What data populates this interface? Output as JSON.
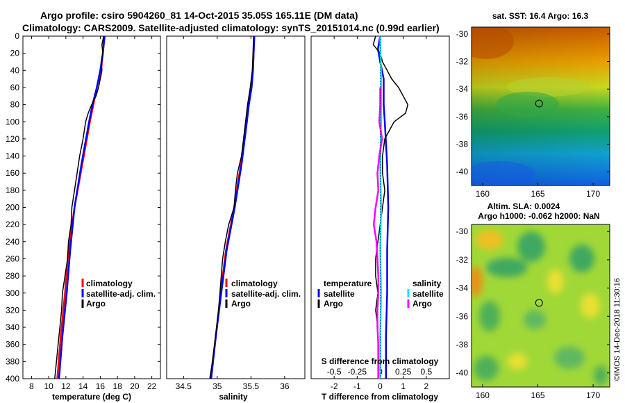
{
  "title_line1": "Argo profile: csiro 5904260_81 14-Oct-2015 35.05S 165.11E (DM data)",
  "title_line2": "Climatology: CARS2009. Satellite-adjusted climatology: synTS_20151014.nc (0.99d earlier)",
  "depth_ticks": [
    "0",
    "20",
    "40",
    "60",
    "80",
    "100",
    "120",
    "140",
    "160",
    "180",
    "200",
    "220",
    "240",
    "260",
    "280",
    "300",
    "320",
    "340",
    "360",
    "380",
    "400"
  ],
  "chart_data": [
    {
      "type": "line",
      "name": "temperature",
      "xlabel": "temperature (deg C)",
      "ylabel": "depth (m)",
      "xlim": [
        7,
        23
      ],
      "ylim": [
        400,
        0
      ],
      "xticks": [
        "8",
        "10",
        "12",
        "14",
        "16",
        "18",
        "20",
        "22"
      ],
      "legend": [
        "climatology",
        "satellite-adj. clim.",
        "Argo"
      ],
      "legend_colors": [
        "#ff0000",
        "#0000ff",
        "#000000"
      ],
      "series": [
        {
          "name": "climatology",
          "color": "#ff0000",
          "depth": [
            0,
            20,
            40,
            60,
            80,
            100,
            150,
            200,
            250,
            300,
            350,
            400
          ],
          "values": [
            16.5,
            16.3,
            16.1,
            15.6,
            15.2,
            14.8,
            13.9,
            13.0,
            12.3,
            11.9,
            11.4,
            11.0
          ]
        },
        {
          "name": "satellite-adj. clim.",
          "color": "#0000ff",
          "depth": [
            0,
            20,
            40,
            60,
            80,
            100,
            150,
            200,
            250,
            300,
            350,
            400
          ],
          "values": [
            16.5,
            16.3,
            16.0,
            15.6,
            15.1,
            14.7,
            13.8,
            13.0,
            12.5,
            12.1,
            11.6,
            11.2
          ]
        },
        {
          "name": "Argo",
          "color": "#000000",
          "depth": [
            0,
            10,
            20,
            30,
            40,
            50,
            60,
            70,
            80,
            90,
            100,
            120,
            140,
            160,
            180,
            200,
            220,
            240,
            260,
            280,
            300,
            320,
            340,
            360,
            380,
            400
          ],
          "values": [
            16.4,
            16.2,
            16.3,
            16.1,
            16.2,
            16.0,
            15.8,
            15.5,
            15.0,
            14.6,
            14.3,
            14.0,
            13.6,
            13.3,
            13.0,
            12.7,
            12.6,
            12.3,
            12.2,
            11.9,
            11.6,
            11.5,
            11.3,
            11.1,
            10.9,
            10.7
          ]
        }
      ]
    },
    {
      "type": "line",
      "name": "salinity",
      "xlabel": "salinity",
      "ylabel": "depth (m)",
      "xlim": [
        34.25,
        36.3
      ],
      "ylim": [
        400,
        0
      ],
      "xticks": [
        "34.5",
        "35",
        "35.5",
        "36"
      ],
      "legend": [
        "climatology",
        "satellite-adj. clim.",
        "Argo"
      ],
      "legend_colors": [
        "#ff0000",
        "#0000ff",
        "#000000"
      ],
      "series": [
        {
          "name": "climatology",
          "color": "#ff0000",
          "depth": [
            0,
            20,
            40,
            60,
            80,
            100,
            150,
            200,
            250,
            300,
            350,
            400
          ],
          "values": [
            35.55,
            35.54,
            35.53,
            35.5,
            35.46,
            35.43,
            35.35,
            35.25,
            35.13,
            35.05,
            34.98,
            34.9
          ]
        },
        {
          "name": "satellite-adj. clim.",
          "color": "#0000ff",
          "depth": [
            0,
            20,
            40,
            60,
            80,
            100,
            150,
            200,
            250,
            300,
            350,
            400
          ],
          "values": [
            35.55,
            35.54,
            35.53,
            35.51,
            35.47,
            35.44,
            35.36,
            35.26,
            35.14,
            35.06,
            34.98,
            34.91
          ]
        },
        {
          "name": "Argo",
          "color": "#000000",
          "depth": [
            0,
            20,
            40,
            60,
            80,
            100,
            120,
            140,
            160,
            180,
            200,
            220,
            240,
            260,
            280,
            300,
            320,
            340,
            360,
            380,
            400
          ],
          "values": [
            35.54,
            35.53,
            35.52,
            35.49,
            35.45,
            35.42,
            35.39,
            35.36,
            35.3,
            35.27,
            35.25,
            35.17,
            35.12,
            35.08,
            35.06,
            35.04,
            35.02,
            34.99,
            34.96,
            34.93,
            34.89
          ]
        }
      ]
    },
    {
      "type": "line",
      "name": "difference",
      "xlabel": "T difference from climatology",
      "ylabel": "depth (m)",
      "xlim": [
        -3,
        3
      ],
      "ylim": [
        400,
        0
      ],
      "xticks": [
        "-2",
        "-1",
        "0",
        "1",
        "2"
      ],
      "top_axis_label": "S difference from climatology",
      "top_xlim": [
        -0.75,
        0.75
      ],
      "top_xticks": [
        "-0.5",
        "-0.25",
        "0",
        "0.25",
        "0.5"
      ],
      "legend_temperature_title": "temperature",
      "legend_temperature": [
        "satellite",
        "Argo"
      ],
      "legend_temperature_colors": [
        "#0000ff",
        "#000000"
      ],
      "legend_salinity_title": "salinity",
      "legend_salinity": [
        "satellite",
        "Argo"
      ],
      "legend_salinity_colors": [
        "#00e5ff",
        "#ff00ff"
      ],
      "series": [
        {
          "name": "T satellite",
          "axis": "T",
          "color": "#0000ff",
          "depth": [
            0,
            15,
            30,
            50,
            80,
            100,
            150,
            200,
            250,
            300,
            350,
            400
          ],
          "values": [
            0.0,
            -0.1,
            0.0,
            0.15,
            0.15,
            0.2,
            0.3,
            0.35,
            0.3,
            0.3,
            0.25,
            0.25
          ]
        },
        {
          "name": "T Argo",
          "axis": "T",
          "color": "#000000",
          "depth": [
            0,
            10,
            20,
            30,
            40,
            50,
            60,
            70,
            80,
            90,
            100,
            110,
            120,
            140,
            160,
            180,
            200,
            220,
            240,
            260,
            280,
            300,
            320,
            340,
            360,
            380,
            400
          ],
          "values": [
            -0.2,
            -0.3,
            0.0,
            0.1,
            0.3,
            0.5,
            0.8,
            1.0,
            1.2,
            1.1,
            0.6,
            0.4,
            0.2,
            0.1,
            0.1,
            0.2,
            0.1,
            0.0,
            -0.1,
            -0.2,
            -0.2,
            -0.1,
            -0.2,
            -0.1,
            -0.1,
            -0.1,
            -0.1
          ]
        },
        {
          "name": "S satellite",
          "axis": "S",
          "color": "#00e5ff",
          "depth": [
            0,
            50,
            100,
            150,
            200,
            250,
            300,
            350,
            400
          ],
          "values": [
            0.0,
            0.01,
            0.01,
            0.0,
            0.01,
            0.0,
            0.01,
            0.0,
            0.0
          ]
        },
        {
          "name": "S Argo",
          "axis": "S",
          "color": "#ff00ff",
          "depth": [
            60,
            80,
            100,
            120,
            140,
            160,
            180,
            200,
            220,
            240,
            260,
            280,
            300,
            320,
            340,
            360,
            380,
            400
          ],
          "values": [
            0.0,
            0.0,
            -0.01,
            0.02,
            -0.01,
            -0.03,
            -0.02,
            -0.05,
            -0.07,
            -0.04,
            -0.03,
            -0.02,
            -0.02,
            -0.03,
            -0.03,
            -0.02,
            -0.02,
            -0.02
          ]
        }
      ]
    },
    {
      "type": "heatmap",
      "name": "sst-map",
      "title": "sat. SST: 16.4 Argo: 16.3",
      "xlim": [
        159,
        171.5
      ],
      "ylim": [
        -41,
        -29.5
      ],
      "xticks": [
        "160",
        "165",
        "170"
      ],
      "yticks": [
        "-30",
        "-32",
        "-34",
        "-36",
        "-38",
        "-40"
      ],
      "argo_position": {
        "lon": 165.11,
        "lat": -35.05
      }
    },
    {
      "type": "heatmap",
      "name": "sla-map",
      "title_line1": "Altim. SLA: 0.0024",
      "title_line2": "Argo h1000: -0.062 h2000: NaN",
      "xlim": [
        159,
        171.5
      ],
      "ylim": [
        -41,
        -29.5
      ],
      "xticks": [
        "160",
        "165",
        "170"
      ],
      "yticks": [
        "-30",
        "-32",
        "-34",
        "-36",
        "-38",
        "-40"
      ],
      "argo_position": {
        "lon": 165.11,
        "lat": -35.05
      }
    }
  ],
  "footer": "©IMOS 14-Dec-2018 11:30:16"
}
